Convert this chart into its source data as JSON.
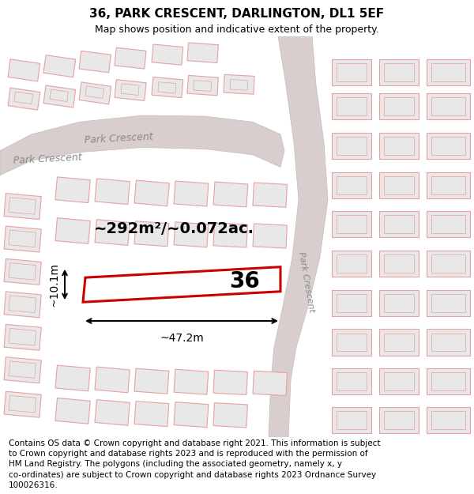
{
  "title": "36, PARK CRESCENT, DARLINGTON, DL1 5EF",
  "subtitle": "Map shows position and indicative extent of the property.",
  "footer": "Contains OS data © Crown copyright and database right 2021. This information is subject\nto Crown copyright and database rights 2023 and is reproduced with the permission of\nHM Land Registry. The polygons (including the associated geometry, namely x, y\nco-ordinates) are subject to Crown copyright and database rights 2023 Ordnance Survey\n100026316.",
  "map_bg": "#f0eded",
  "road_fill": "#d9cece",
  "road_edge": "#c8b8b8",
  "building_fill": "#e8e8e8",
  "building_edge": "#e8a0a0",
  "plot_fill": "#ffffff",
  "plot_edge": "#cc0000",
  "area_label": "~292m²/~0.072ac.",
  "number_label": "36",
  "dim_width": "~47.2m",
  "dim_height": "~10.1m",
  "street_label": "Park Crescent",
  "title_fontsize": 11,
  "subtitle_fontsize": 9,
  "footer_fontsize": 7.5
}
